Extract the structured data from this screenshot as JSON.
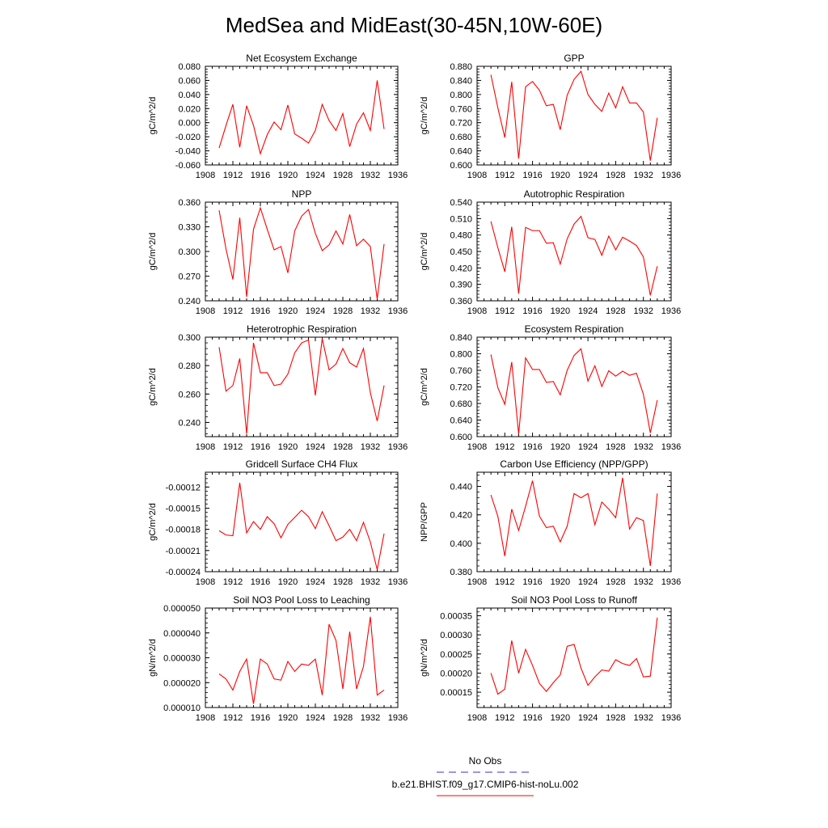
{
  "title": "MedSea and MidEast(30-45N,10W-60E)",
  "colors": {
    "series": "#ff0000",
    "obs": "#3333cc",
    "axis": "#000000"
  },
  "legend": {
    "entries": [
      {
        "label": "No Obs",
        "color": "#3333cc",
        "dash": true
      },
      {
        "label": "b.e21.BHIST.f09_g17.CMIP6-hist-noLu.002",
        "color": "#ff0000",
        "dash": false
      }
    ]
  },
  "chart_data": [
    {
      "type": "line",
      "title": "Net Ecosystem Exchange",
      "ylabel": "gC/m^2/d",
      "xlim": [
        1908,
        1936
      ],
      "xticks": [
        "1908",
        "1912",
        "1916",
        "1920",
        "1924",
        "1928",
        "1932",
        "1936"
      ],
      "ylim": [
        -0.06,
        0.08
      ],
      "yticks": [
        "-0.060",
        "-0.040",
        "-0.020",
        "0.000",
        "0.020",
        "0.040",
        "0.060",
        "0.080"
      ],
      "x": [
        1910,
        1911,
        1912,
        1913,
        1914,
        1915,
        1916,
        1917,
        1918,
        1919,
        1920,
        1921,
        1922,
        1923,
        1924,
        1925,
        1926,
        1927,
        1928,
        1929,
        1930,
        1931,
        1932,
        1933,
        1934
      ],
      "series": [
        {
          "values": [
            -0.036,
            -0.004,
            0.026,
            -0.035,
            0.024,
            -0.004,
            -0.044,
            -0.017,
            0.001,
            -0.01,
            0.025,
            -0.016,
            -0.022,
            -0.029,
            -0.011,
            0.026,
            0.003,
            -0.011,
            0.013,
            -0.034,
            -0.002,
            0.014,
            -0.011,
            0.06,
            -0.009
          ]
        }
      ]
    },
    {
      "type": "line",
      "title": "GPP",
      "ylabel": "gC/m^2/d",
      "xlim": [
        1908,
        1936
      ],
      "xticks": [
        "1908",
        "1912",
        "1916",
        "1920",
        "1924",
        "1928",
        "1932",
        "1936"
      ],
      "ylim": [
        0.6,
        0.88
      ],
      "yticks": [
        "0.600",
        "0.640",
        "0.680",
        "0.720",
        "0.760",
        "0.800",
        "0.840",
        "0.880"
      ],
      "x": [
        1910,
        1911,
        1912,
        1913,
        1914,
        1915,
        1916,
        1917,
        1918,
        1919,
        1920,
        1921,
        1922,
        1923,
        1924,
        1925,
        1926,
        1927,
        1928,
        1929,
        1930,
        1931,
        1932,
        1933,
        1934
      ],
      "series": [
        {
          "values": [
            0.856,
            0.762,
            0.678,
            0.836,
            0.618,
            0.822,
            0.837,
            0.812,
            0.768,
            0.772,
            0.7,
            0.798,
            0.843,
            0.866,
            0.8,
            0.772,
            0.752,
            0.804,
            0.762,
            0.822,
            0.776,
            0.776,
            0.75,
            0.612,
            0.734
          ]
        }
      ]
    },
    {
      "type": "line",
      "title": "NPP",
      "ylabel": "gC/m^2/d",
      "xlim": [
        1908,
        1936
      ],
      "xticks": [
        "1908",
        "1912",
        "1916",
        "1920",
        "1924",
        "1928",
        "1932",
        "1936"
      ],
      "ylim": [
        0.24,
        0.36
      ],
      "yticks": [
        "0.240",
        "0.270",
        "0.300",
        "0.330",
        "0.360"
      ],
      "x": [
        1910,
        1911,
        1912,
        1913,
        1914,
        1915,
        1916,
        1917,
        1918,
        1919,
        1920,
        1921,
        1922,
        1923,
        1924,
        1925,
        1926,
        1927,
        1928,
        1929,
        1930,
        1931,
        1932,
        1933,
        1934
      ],
      "series": [
        {
          "values": [
            0.35,
            0.303,
            0.266,
            0.341,
            0.245,
            0.327,
            0.353,
            0.327,
            0.302,
            0.306,
            0.274,
            0.325,
            0.343,
            0.351,
            0.322,
            0.301,
            0.308,
            0.325,
            0.309,
            0.345,
            0.307,
            0.315,
            0.306,
            0.242,
            0.309
          ]
        }
      ]
    },
    {
      "type": "line",
      "title": "Autotrophic Respiration",
      "ylabel": "gC/m^2/d",
      "xlim": [
        1908,
        1936
      ],
      "xticks": [
        "1908",
        "1912",
        "1916",
        "1920",
        "1924",
        "1928",
        "1932",
        "1936"
      ],
      "ylim": [
        0.36,
        0.54
      ],
      "yticks": [
        "0.360",
        "0.390",
        "0.420",
        "0.450",
        "0.480",
        "0.510",
        "0.540"
      ],
      "x": [
        1910,
        1911,
        1912,
        1913,
        1914,
        1915,
        1916,
        1917,
        1918,
        1919,
        1920,
        1921,
        1922,
        1923,
        1924,
        1925,
        1926,
        1927,
        1928,
        1929,
        1930,
        1931,
        1932,
        1933,
        1934
      ],
      "series": [
        {
          "values": [
            0.505,
            0.457,
            0.413,
            0.495,
            0.373,
            0.494,
            0.488,
            0.488,
            0.465,
            0.466,
            0.427,
            0.473,
            0.5,
            0.514,
            0.475,
            0.472,
            0.443,
            0.478,
            0.453,
            0.476,
            0.469,
            0.461,
            0.44,
            0.37,
            0.423
          ]
        }
      ]
    },
    {
      "type": "line",
      "title": "Heterotrophic Respiration",
      "ylabel": "gC/m^2/d",
      "xlim": [
        1908,
        1936
      ],
      "xticks": [
        "1908",
        "1912",
        "1916",
        "1920",
        "1924",
        "1928",
        "1932",
        "1936"
      ],
      "ylim": [
        0.23,
        0.3
      ],
      "yticks": [
        "0.240",
        "0.260",
        "0.280",
        "0.300"
      ],
      "x": [
        1910,
        1911,
        1912,
        1913,
        1914,
        1915,
        1916,
        1917,
        1918,
        1919,
        1920,
        1921,
        1922,
        1923,
        1924,
        1925,
        1926,
        1927,
        1928,
        1929,
        1930,
        1931,
        1932,
        1933,
        1934
      ],
      "series": [
        {
          "values": [
            0.293,
            0.262,
            0.266,
            0.285,
            0.232,
            0.296,
            0.275,
            0.275,
            0.266,
            0.267,
            0.274,
            0.289,
            0.296,
            0.298,
            0.259,
            0.299,
            0.277,
            0.281,
            0.292,
            0.282,
            0.279,
            0.292,
            0.261,
            0.241,
            0.266
          ]
        }
      ]
    },
    {
      "type": "line",
      "title": "Ecosystem Respiration",
      "ylabel": "gC/m^2/d",
      "xlim": [
        1908,
        1936
      ],
      "xticks": [
        "1908",
        "1912",
        "1916",
        "1920",
        "1924",
        "1928",
        "1932",
        "1936"
      ],
      "ylim": [
        0.6,
        0.84
      ],
      "yticks": [
        "0.600",
        "0.640",
        "0.680",
        "0.720",
        "0.760",
        "0.800",
        "0.840"
      ],
      "x": [
        1910,
        1911,
        1912,
        1913,
        1914,
        1915,
        1916,
        1917,
        1918,
        1919,
        1920,
        1921,
        1922,
        1923,
        1924,
        1925,
        1926,
        1927,
        1928,
        1929,
        1930,
        1931,
        1932,
        1933,
        1934
      ],
      "series": [
        {
          "values": [
            0.798,
            0.718,
            0.678,
            0.78,
            0.606,
            0.79,
            0.762,
            0.762,
            0.731,
            0.733,
            0.701,
            0.76,
            0.796,
            0.812,
            0.734,
            0.771,
            0.721,
            0.759,
            0.746,
            0.758,
            0.748,
            0.753,
            0.702,
            0.609,
            0.688
          ]
        }
      ]
    },
    {
      "type": "line",
      "title": "Gridcell Surface CH4 Flux",
      "ylabel": "gC/m^2/d",
      "xlim": [
        1908,
        1936
      ],
      "xticks": [
        "1908",
        "1912",
        "1916",
        "1920",
        "1924",
        "1928",
        "1932",
        "1936"
      ],
      "ylim": [
        -0.00024,
        -9.9e-05
      ],
      "yticks": [
        "-0.00024",
        "-0.00021",
        "-0.00018",
        "-0.00015",
        "-0.00012"
      ],
      "x": [
        1910,
        1911,
        1912,
        1913,
        1914,
        1915,
        1916,
        1917,
        1918,
        1919,
        1920,
        1921,
        1922,
        1923,
        1924,
        1925,
        1926,
        1927,
        1928,
        1929,
        1930,
        1931,
        1932,
        1933,
        1934
      ],
      "series": [
        {
          "values": [
            -0.000182,
            -0.000188,
            -0.000189,
            -0.000114,
            -0.000185,
            -0.000169,
            -0.00018,
            -0.000162,
            -0.000172,
            -0.000192,
            -0.000173,
            -0.000163,
            -0.000153,
            -0.000162,
            -0.000179,
            -0.000155,
            -0.000175,
            -0.000196,
            -0.000191,
            -0.00018,
            -0.000196,
            -0.00017,
            -0.000198,
            -0.000237,
            -0.000186
          ]
        }
      ]
    },
    {
      "type": "line",
      "title": "Carbon Use Efficiency (NPP/GPP)",
      "ylabel": "NPP/GPP",
      "xlim": [
        1908,
        1936
      ],
      "xticks": [
        "1908",
        "1912",
        "1916",
        "1920",
        "1924",
        "1928",
        "1932",
        "1936"
      ],
      "ylim": [
        0.38,
        0.45
      ],
      "yticks": [
        "0.380",
        "0.400",
        "0.420",
        "0.440"
      ],
      "x": [
        1910,
        1911,
        1912,
        1913,
        1914,
        1915,
        1916,
        1917,
        1918,
        1919,
        1920,
        1921,
        1922,
        1923,
        1924,
        1925,
        1926,
        1927,
        1928,
        1929,
        1930,
        1931,
        1932,
        1933,
        1934
      ],
      "series": [
        {
          "values": [
            0.434,
            0.419,
            0.391,
            0.424,
            0.409,
            0.426,
            0.444,
            0.419,
            0.411,
            0.412,
            0.401,
            0.412,
            0.435,
            0.432,
            0.435,
            0.413,
            0.429,
            0.424,
            0.418,
            0.446,
            0.41,
            0.418,
            0.416,
            0.384,
            0.435
          ]
        }
      ]
    },
    {
      "type": "line",
      "title": "Soil NO3 Pool Loss to Leaching",
      "ylabel": "gN/m^2/d",
      "xlim": [
        1908,
        1936
      ],
      "xticks": [
        "1908",
        "1912",
        "1916",
        "1920",
        "1924",
        "1928",
        "1932",
        "1936"
      ],
      "ylim": [
        1e-05,
        5e-05
      ],
      "yticks": [
        "0.000010",
        "0.000020",
        "0.000030",
        "0.000040",
        "0.000050"
      ],
      "x": [
        1910,
        1911,
        1912,
        1913,
        1914,
        1915,
        1916,
        1917,
        1918,
        1919,
        1920,
        1921,
        1922,
        1923,
        1924,
        1925,
        1926,
        1927,
        1928,
        1929,
        1930,
        1931,
        1932,
        1933,
        1934
      ],
      "series": [
        {
          "values": [
            2.35e-05,
            2.15e-05,
            1.7e-05,
            2.45e-05,
            2.95e-05,
            1.15e-05,
            2.95e-05,
            2.75e-05,
            2.15e-05,
            2.1e-05,
            2.85e-05,
            2.45e-05,
            2.75e-05,
            2.7e-05,
            2.95e-05,
            1.5e-05,
            4.35e-05,
            3.7e-05,
            1.75e-05,
            4.05e-05,
            1.75e-05,
            2.65e-05,
            4.65e-05,
            1.5e-05,
            1.7e-05
          ]
        }
      ]
    },
    {
      "type": "line",
      "title": "Soil NO3 Pool Loss to Runoff",
      "ylabel": "gN/m^2/d",
      "xlim": [
        1908,
        1936
      ],
      "xticks": [
        "1908",
        "1912",
        "1916",
        "1920",
        "1924",
        "1928",
        "1932",
        "1936"
      ],
      "ylim": [
        0.00011,
        0.00037
      ],
      "yticks": [
        "0.00015",
        "0.00020",
        "0.00025",
        "0.00030",
        "0.00035"
      ],
      "x": [
        1910,
        1911,
        1912,
        1913,
        1914,
        1915,
        1916,
        1917,
        1918,
        1919,
        1920,
        1921,
        1922,
        1923,
        1924,
        1925,
        1926,
        1927,
        1928,
        1929,
        1930,
        1931,
        1932,
        1933,
        1934
      ],
      "series": [
        {
          "values": [
            0.0002,
            0.000145,
            0.000158,
            0.000285,
            0.0002,
            0.000262,
            0.00022,
            0.000173,
            0.000152,
            0.000175,
            0.000195,
            0.00027,
            0.000275,
            0.000213,
            0.000168,
            0.00019,
            0.000208,
            0.000205,
            0.000235,
            0.000225,
            0.00022,
            0.000238,
            0.00019,
            0.000192,
            0.000345
          ]
        }
      ]
    }
  ]
}
